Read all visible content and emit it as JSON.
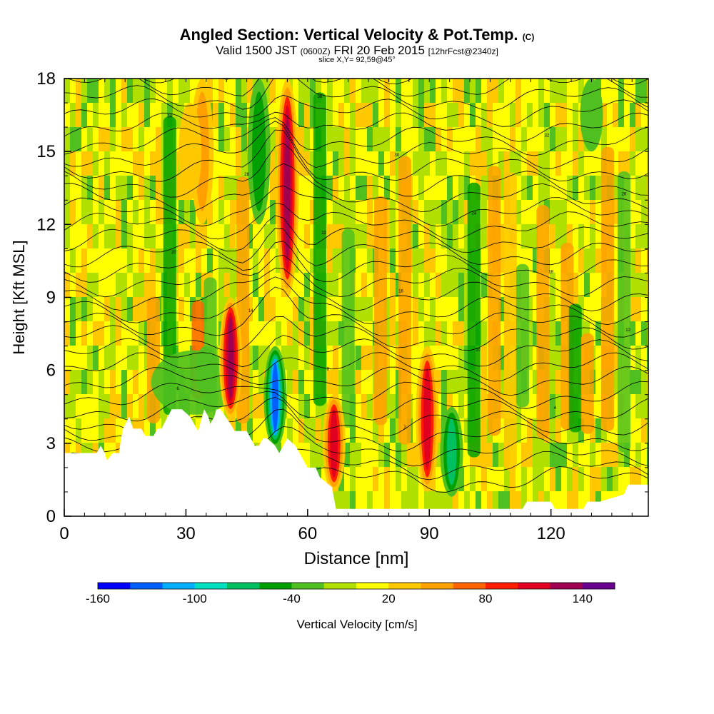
{
  "title": {
    "main": "Angled Section: Vertical Velocity & Pot.Temp.",
    "copyright": "(C)",
    "valid_prefix": "Valid 1500 JST",
    "valid_utc": "(0600Z)",
    "valid_date": "FRI 20 Feb 2015",
    "forecast": "[12hrFcst@2340z]",
    "slice": "slice X,Y= 92,59@45°"
  },
  "chart_data": {
    "type": "heatmap",
    "title": "Angled Section: Vertical Velocity & Pot.Temp.",
    "xlabel": "Distance [nm]",
    "ylabel": "Height [Kft MSL]",
    "xlim": [
      0,
      144
    ],
    "ylim": [
      0,
      18
    ],
    "x_ticks": [
      "0",
      "30",
      "60",
      "90",
      "120"
    ],
    "x_tick_values": [
      0,
      30,
      60,
      90,
      120
    ],
    "y_ticks": [
      "0",
      "3",
      "6",
      "9",
      "12",
      "15",
      "18"
    ],
    "y_tick_values": [
      0,
      3,
      6,
      9,
      12,
      15,
      18
    ],
    "colorbar": {
      "label": "Vertical Velocity [cm/s]",
      "tick_labels": [
        "-160",
        "-100",
        "-40",
        "20",
        "80",
        "140"
      ],
      "tick_values": [
        -160,
        -100,
        -40,
        20,
        80,
        140
      ],
      "min": -160,
      "max": 160,
      "step": 20,
      "colors": [
        "#0000ff",
        "#0060ff",
        "#00b0ff",
        "#00e0c0",
        "#00c060",
        "#00a000",
        "#50c020",
        "#b0e000",
        "#ffff00",
        "#ffc800",
        "#ffa000",
        "#ff6400",
        "#ff1e00",
        "#e00020",
        "#a00050",
        "#6a0090"
      ]
    },
    "updrafts": [
      {
        "x": 41,
        "y0": 4,
        "y1": 9,
        "w": 130
      },
      {
        "x": 55,
        "y0": 9,
        "y1": 18,
        "w": 150
      },
      {
        "x": 66.5,
        "y0": 1,
        "y1": 5,
        "w": 110
      },
      {
        "x": 89.5,
        "y0": 1,
        "y1": 7,
        "w": 110
      },
      {
        "x": 34,
        "y0": 12,
        "y1": 18,
        "w": 60
      },
      {
        "x": 31,
        "y0": 13,
        "y1": 17,
        "w": 50
      }
    ],
    "downdrafts": [
      {
        "x": 52,
        "y0": 2.8,
        "y1": 7,
        "w": -130
      },
      {
        "x": 48,
        "y0": 12,
        "y1": 18,
        "w": -60
      },
      {
        "x": 95.5,
        "y0": 0.8,
        "y1": 4.5,
        "w": -90
      },
      {
        "x": 130,
        "y0": 15,
        "y1": 18,
        "w": -50
      },
      {
        "x": 35,
        "y0": 5,
        "y1": 7,
        "w": -50
      }
    ],
    "terrain_profile": {
      "x": [
        0,
        8,
        9,
        10,
        10.5,
        12,
        13.5,
        14,
        14.5,
        16,
        17,
        19,
        20,
        22,
        23,
        24,
        25.5,
        26.5,
        29,
        31,
        32,
        33,
        34,
        34.5,
        35.5,
        36,
        37,
        37.5,
        38.5,
        41,
        42,
        43,
        44,
        45,
        46,
        47,
        48,
        49,
        50,
        52,
        53,
        54,
        55,
        57,
        58,
        59,
        60,
        62,
        63,
        66,
        67,
        73,
        78,
        84,
        89,
        95,
        100,
        113,
        114,
        120,
        121,
        128,
        129,
        131,
        132,
        138,
        139,
        144
      ],
      "y": [
        2.6,
        2.6,
        2.9,
        2.6,
        2.3,
        2.6,
        2.6,
        3.2,
        3.6,
        4.1,
        3.6,
        3.6,
        3.3,
        3.3,
        3.6,
        3.6,
        4.1,
        4.4,
        4.4,
        4.1,
        3.8,
        3.5,
        4.1,
        4.4,
        4.1,
        3.8,
        4.1,
        4.4,
        4.4,
        3.8,
        3.5,
        3.5,
        3.5,
        3.5,
        3.2,
        2.9,
        2.9,
        3.2,
        3.2,
        2.9,
        2.6,
        2.9,
        3.2,
        2.9,
        2.6,
        2.3,
        2.0,
        2.0,
        1.6,
        1.2,
        0.3,
        0.3,
        0.3,
        0.3,
        0.3,
        0.3,
        0.3,
        0.3,
        0.6,
        0.6,
        0.3,
        0.3,
        0.6,
        0.6,
        0.6,
        0.9,
        1.3,
        1.3
      ]
    },
    "theta_label_values": [
      "-1",
      "0",
      "2",
      "4",
      "6",
      "8",
      "10",
      "12",
      "14",
      "16",
      "18",
      "20",
      "22",
      "24",
      "26",
      "28",
      "30",
      "32",
      "34",
      "36"
    ]
  }
}
